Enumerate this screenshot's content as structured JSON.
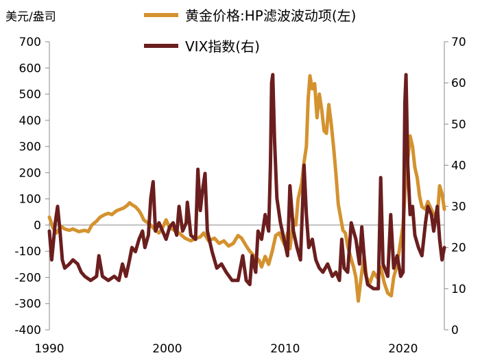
{
  "chart_data": {
    "type": "line",
    "left_unit": "美元/盎司",
    "legend": [
      {
        "label": "黄金价格:HP滤波波动项(左)",
        "color": "#D4922F"
      },
      {
        "label": "VIX指数(右)",
        "color": "#6B1E1E"
      }
    ],
    "left_axis": {
      "min": -400,
      "max": 700,
      "ticks": [
        "700",
        "600",
        "500",
        "400",
        "300",
        "200",
        "100",
        "0",
        "-100",
        "-200",
        "-300",
        "-400"
      ]
    },
    "right_axis": {
      "min": 0,
      "max": 70,
      "ticks": [
        "70",
        "60",
        "50",
        "40",
        "30",
        "20",
        "10",
        "0"
      ]
    },
    "x_axis": {
      "min": 1990,
      "max": 2023.5,
      "ticks": [
        "1990",
        "2000",
        "2010",
        "2020"
      ]
    },
    "series": [
      {
        "name": "黄金价格:HP滤波波动项(左)",
        "axis": "left",
        "color": "#D4922F",
        "points": [
          [
            1990.0,
            30
          ],
          [
            1990.3,
            -10
          ],
          [
            1990.6,
            -30
          ],
          [
            1991.0,
            -5
          ],
          [
            1991.3,
            -15
          ],
          [
            1991.7,
            -20
          ],
          [
            1992.0,
            -15
          ],
          [
            1992.5,
            -25
          ],
          [
            1993.0,
            -20
          ],
          [
            1993.3,
            -25
          ],
          [
            1993.6,
            0
          ],
          [
            1994.0,
            15
          ],
          [
            1994.3,
            30
          ],
          [
            1994.7,
            40
          ],
          [
            1995.0,
            45
          ],
          [
            1995.3,
            40
          ],
          [
            1995.7,
            55
          ],
          [
            1996.0,
            60
          ],
          [
            1996.3,
            65
          ],
          [
            1996.6,
            75
          ],
          [
            1996.8,
            85
          ],
          [
            1997.0,
            78
          ],
          [
            1997.3,
            70
          ],
          [
            1997.6,
            55
          ],
          [
            1997.8,
            40
          ],
          [
            1998.0,
            20
          ],
          [
            1998.3,
            10
          ],
          [
            1998.6,
            0
          ],
          [
            1999.0,
            -20
          ],
          [
            1999.3,
            -30
          ],
          [
            1999.6,
            -10
          ],
          [
            1999.9,
            20
          ],
          [
            2000.2,
            -10
          ],
          [
            2000.6,
            -20
          ],
          [
            2001.0,
            -30
          ],
          [
            2001.5,
            -50
          ],
          [
            2002.0,
            -60
          ],
          [
            2002.5,
            -50
          ],
          [
            2002.8,
            -45
          ],
          [
            2003.1,
            -30
          ],
          [
            2003.5,
            -60
          ],
          [
            2004.0,
            -50
          ],
          [
            2004.4,
            -70
          ],
          [
            2004.8,
            -60
          ],
          [
            2005.2,
            -80
          ],
          [
            2005.6,
            -70
          ],
          [
            2006.0,
            -40
          ],
          [
            2006.3,
            -50
          ],
          [
            2006.7,
            -80
          ],
          [
            2007.0,
            -100
          ],
          [
            2007.4,
            -120
          ],
          [
            2007.8,
            -135
          ],
          [
            2008.0,
            -160
          ],
          [
            2008.3,
            -120
          ],
          [
            2008.6,
            -150
          ],
          [
            2008.9,
            -100
          ],
          [
            2009.2,
            -40
          ],
          [
            2009.5,
            -30
          ],
          [
            2009.8,
            -60
          ],
          [
            2010.0,
            -80
          ],
          [
            2010.2,
            -30
          ],
          [
            2010.4,
            -90
          ],
          [
            2010.7,
            20
          ],
          [
            2010.9,
            0
          ],
          [
            2011.1,
            100
          ],
          [
            2011.4,
            160
          ],
          [
            2011.6,
            240
          ],
          [
            2011.8,
            300
          ],
          [
            2011.95,
            480
          ],
          [
            2012.1,
            570
          ],
          [
            2012.3,
            520
          ],
          [
            2012.5,
            540
          ],
          [
            2012.7,
            410
          ],
          [
            2012.9,
            500
          ],
          [
            2013.1,
            440
          ],
          [
            2013.3,
            360
          ],
          [
            2013.5,
            350
          ],
          [
            2013.7,
            460
          ],
          [
            2013.9,
            390
          ],
          [
            2014.1,
            300
          ],
          [
            2014.3,
            200
          ],
          [
            2014.5,
            80
          ],
          [
            2014.7,
            30
          ],
          [
            2014.9,
            -20
          ],
          [
            2015.1,
            -30
          ],
          [
            2015.3,
            -80
          ],
          [
            2015.6,
            -130
          ],
          [
            2015.8,
            -160
          ],
          [
            2016.0,
            -200
          ],
          [
            2016.2,
            -290
          ],
          [
            2016.5,
            -180
          ],
          [
            2016.7,
            -120
          ],
          [
            2016.9,
            -200
          ],
          [
            2017.2,
            -220
          ],
          [
            2017.5,
            -180
          ],
          [
            2017.8,
            -200
          ],
          [
            2018.1,
            -160
          ],
          [
            2018.4,
            -220
          ],
          [
            2018.7,
            -260
          ],
          [
            2019.0,
            -270
          ],
          [
            2019.2,
            -200
          ],
          [
            2019.5,
            -150
          ],
          [
            2019.8,
            -60
          ],
          [
            2020.0,
            0
          ],
          [
            2020.2,
            150
          ],
          [
            2020.4,
            250
          ],
          [
            2020.6,
            340
          ],
          [
            2020.8,
            300
          ],
          [
            2021.0,
            220
          ],
          [
            2021.2,
            180
          ],
          [
            2021.4,
            110
          ],
          [
            2021.6,
            70
          ],
          [
            2021.9,
            60
          ],
          [
            2022.1,
            90
          ],
          [
            2022.4,
            60
          ],
          [
            2022.6,
            40
          ],
          [
            2022.9,
            30
          ],
          [
            2023.1,
            150
          ],
          [
            2023.3,
            120
          ],
          [
            2023.5,
            60
          ]
        ]
      },
      {
        "name": "VIX指数(右)",
        "axis": "right",
        "color": "#6B1E1E",
        "points": [
          [
            1990.0,
            24
          ],
          [
            1990.2,
            17
          ],
          [
            1990.5,
            26
          ],
          [
            1990.7,
            30
          ],
          [
            1990.9,
            24
          ],
          [
            1991.1,
            17
          ],
          [
            1991.3,
            15
          ],
          [
            1991.7,
            16
          ],
          [
            1992.0,
            17
          ],
          [
            1992.4,
            16
          ],
          [
            1992.7,
            14
          ],
          [
            1993.0,
            13
          ],
          [
            1993.5,
            12
          ],
          [
            1994.0,
            13
          ],
          [
            1994.2,
            18
          ],
          [
            1994.5,
            13
          ],
          [
            1995.0,
            12
          ],
          [
            1995.5,
            13
          ],
          [
            1995.9,
            12
          ],
          [
            1996.2,
            16
          ],
          [
            1996.5,
            13
          ],
          [
            1996.8,
            17
          ],
          [
            1997.0,
            20
          ],
          [
            1997.3,
            19
          ],
          [
            1997.6,
            22
          ],
          [
            1997.9,
            24
          ],
          [
            1998.1,
            20
          ],
          [
            1998.4,
            23
          ],
          [
            1998.6,
            32
          ],
          [
            1998.8,
            36
          ],
          [
            1999.0,
            24
          ],
          [
            1999.3,
            26
          ],
          [
            1999.6,
            24
          ],
          [
            1999.9,
            22
          ],
          [
            2000.2,
            25
          ],
          [
            2000.5,
            26
          ],
          [
            2000.8,
            23
          ],
          [
            2001.0,
            30
          ],
          [
            2001.3,
            24
          ],
          [
            2001.6,
            26
          ],
          [
            2001.7,
            31
          ],
          [
            2002.0,
            23
          ],
          [
            2002.4,
            22
          ],
          [
            2002.6,
            39
          ],
          [
            2002.8,
            29
          ],
          [
            2003.0,
            34
          ],
          [
            2003.2,
            38
          ],
          [
            2003.4,
            24
          ],
          [
            2003.8,
            19
          ],
          [
            2004.2,
            15
          ],
          [
            2004.6,
            16
          ],
          [
            2005.0,
            14
          ],
          [
            2005.5,
            12
          ],
          [
            2006.0,
            12
          ],
          [
            2006.4,
            18
          ],
          [
            2006.7,
            12
          ],
          [
            2007.0,
            11
          ],
          [
            2007.2,
            18
          ],
          [
            2007.5,
            14
          ],
          [
            2007.7,
            24
          ],
          [
            2008.0,
            22
          ],
          [
            2008.3,
            28
          ],
          [
            2008.6,
            24
          ],
          [
            2008.75,
            40
          ],
          [
            2008.85,
            60
          ],
          [
            2008.95,
            62
          ],
          [
            2009.1,
            46
          ],
          [
            2009.3,
            32
          ],
          [
            2009.6,
            26
          ],
          [
            2009.9,
            22
          ],
          [
            2010.2,
            18
          ],
          [
            2010.4,
            35
          ],
          [
            2010.7,
            24
          ],
          [
            2011.0,
            20
          ],
          [
            2011.3,
            17
          ],
          [
            2011.6,
            40
          ],
          [
            2011.8,
            28
          ],
          [
            2012.0,
            20
          ],
          [
            2012.3,
            22
          ],
          [
            2012.6,
            17
          ],
          [
            2012.9,
            15
          ],
          [
            2013.2,
            14
          ],
          [
            2013.6,
            16
          ],
          [
            2014.0,
            13
          ],
          [
            2014.3,
            14
          ],
          [
            2014.6,
            12
          ],
          [
            2014.8,
            22
          ],
          [
            2015.0,
            15
          ],
          [
            2015.3,
            14
          ],
          [
            2015.6,
            26
          ],
          [
            2015.8,
            24
          ],
          [
            2016.0,
            22
          ],
          [
            2016.3,
            16
          ],
          [
            2016.5,
            25
          ],
          [
            2016.8,
            14
          ],
          [
            2017.0,
            11
          ],
          [
            2017.5,
            10
          ],
          [
            2017.9,
            10
          ],
          [
            2018.1,
            37
          ],
          [
            2018.3,
            16
          ],
          [
            2018.7,
            13
          ],
          [
            2018.95,
            28
          ],
          [
            2019.2,
            15
          ],
          [
            2019.5,
            18
          ],
          [
            2019.8,
            13
          ],
          [
            2020.0,
            14
          ],
          [
            2020.15,
            55
          ],
          [
            2020.25,
            62
          ],
          [
            2020.4,
            40
          ],
          [
            2020.6,
            28
          ],
          [
            2020.8,
            30
          ],
          [
            2021.0,
            23
          ],
          [
            2021.3,
            20
          ],
          [
            2021.6,
            18
          ],
          [
            2021.9,
            26
          ],
          [
            2022.1,
            30
          ],
          [
            2022.4,
            28
          ],
          [
            2022.6,
            24
          ],
          [
            2022.9,
            30
          ],
          [
            2023.1,
            22
          ],
          [
            2023.3,
            17
          ],
          [
            2023.5,
            20
          ]
        ]
      }
    ]
  }
}
